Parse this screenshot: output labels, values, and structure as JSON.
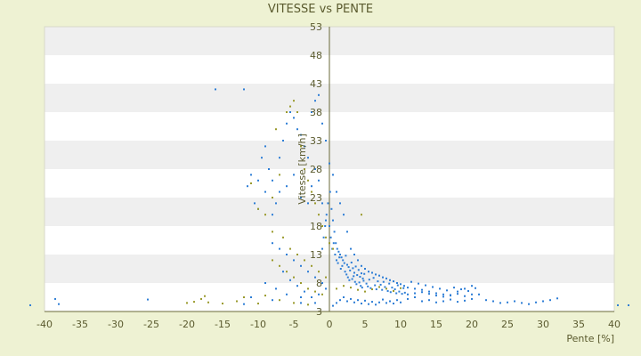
{
  "chart_data": {
    "type": "scatter",
    "title": "VITESSE vs PENTE",
    "xlabel": "Pente [%]",
    "ylabel": "Vitesse [km/h]",
    "xlim": [
      -40,
      40
    ],
    "ylim": [
      3,
      53
    ],
    "x_ticks": [
      -40,
      -35,
      -30,
      -25,
      -20,
      -15,
      -10,
      -5,
      0,
      5,
      10,
      15,
      20,
      25,
      30,
      35,
      40
    ],
    "y_ticks": [
      3,
      8,
      13,
      18,
      23,
      28,
      33,
      38,
      43,
      48,
      53
    ],
    "grid": "horizontal-alternating-bands",
    "legend": "none",
    "series": [
      {
        "color": "#2e7ed6",
        "points": [
          [
            -42,
            4.1
          ],
          [
            -38.5,
            5.2
          ],
          [
            -38,
            4.3
          ],
          [
            -25.5,
            5.1
          ],
          [
            -12,
            4.3
          ],
          [
            -11,
            5.5
          ],
          [
            -8,
            5
          ],
          [
            -4,
            5.5
          ],
          [
            -16,
            42
          ],
          [
            -12,
            42
          ],
          [
            -11.5,
            25
          ],
          [
            -11,
            27
          ],
          [
            -10,
            26
          ],
          [
            -9.5,
            30
          ],
          [
            -9,
            32
          ],
          [
            -8.5,
            28
          ],
          [
            -8,
            26
          ],
          [
            -7,
            30
          ],
          [
            -6.5,
            33
          ],
          [
            -6,
            36
          ],
          [
            -5.5,
            38
          ],
          [
            -5,
            37
          ],
          [
            -4.5,
            35
          ],
          [
            -4,
            34
          ],
          [
            -3.5,
            32
          ],
          [
            -3,
            30
          ],
          [
            -2.5,
            38
          ],
          [
            -2,
            40
          ],
          [
            -1.5,
            41
          ],
          [
            -1,
            36
          ],
          [
            -0.5,
            33
          ],
          [
            0,
            29
          ],
          [
            0.5,
            27
          ],
          [
            1,
            24
          ],
          [
            1.5,
            22
          ],
          [
            2,
            20
          ],
          [
            2.5,
            17
          ],
          [
            3,
            14
          ],
          [
            3.5,
            13
          ],
          [
            4,
            12
          ],
          [
            4.5,
            11
          ],
          [
            5,
            10.5
          ],
          [
            5.5,
            10
          ],
          [
            6,
            9.8
          ],
          [
            6.5,
            9.5
          ],
          [
            7,
            9.3
          ],
          [
            7.5,
            9
          ],
          [
            8,
            8.8
          ],
          [
            8.5,
            8.5
          ],
          [
            9,
            8.3
          ],
          [
            9.5,
            8
          ],
          [
            10,
            7.8
          ],
          [
            10.5,
            7.5
          ],
          [
            11,
            7.2
          ],
          [
            12,
            7
          ],
          [
            13,
            6.8
          ],
          [
            14,
            6.5
          ],
          [
            15,
            6.2
          ],
          [
            16,
            6
          ],
          [
            17,
            5.8
          ],
          [
            18,
            6.5
          ],
          [
            19,
            7
          ],
          [
            20,
            7.5
          ],
          [
            21,
            6
          ],
          [
            22,
            5
          ],
          [
            23,
            4.8
          ],
          [
            24,
            4.5
          ],
          [
            25,
            4.6
          ],
          [
            26,
            4.8
          ],
          [
            27,
            4.5
          ],
          [
            28,
            4.3
          ],
          [
            29,
            4.6
          ],
          [
            30,
            4.8
          ],
          [
            31,
            5
          ],
          [
            32,
            5.3
          ],
          [
            40.5,
            4.1
          ],
          [
            42,
            4.1
          ],
          [
            -10,
            21
          ],
          [
            -10.5,
            22
          ],
          [
            -9,
            24
          ],
          [
            -8,
            20
          ],
          [
            -7.5,
            22
          ],
          [
            -7,
            24
          ],
          [
            -6,
            25
          ],
          [
            -5,
            27
          ],
          [
            -4,
            23
          ],
          [
            -3,
            22
          ],
          [
            -2.5,
            25
          ],
          [
            -2,
            28
          ],
          [
            -1.5,
            26
          ],
          [
            -1,
            22
          ],
          [
            -0.5,
            19
          ],
          [
            0,
            18
          ],
          [
            0.2,
            16
          ],
          [
            0.4,
            14
          ],
          [
            0.6,
            15
          ],
          [
            0.8,
            13
          ],
          [
            1,
            12
          ],
          [
            1.2,
            11.5
          ],
          [
            1.4,
            12.5
          ],
          [
            1.6,
            10.5
          ],
          [
            1.8,
            11
          ],
          [
            2.2,
            10
          ],
          [
            2.4,
            9.5
          ],
          [
            2.6,
            9
          ],
          [
            2.8,
            8.5
          ],
          [
            3.2,
            8.7
          ],
          [
            3.4,
            9.2
          ],
          [
            3.6,
            8.2
          ],
          [
            3.8,
            7.8
          ],
          [
            4.2,
            8.1
          ],
          [
            4.4,
            7.5
          ],
          [
            4.6,
            7.2
          ],
          [
            4.8,
            8.4
          ],
          [
            5.2,
            7.9
          ],
          [
            5.4,
            7.4
          ],
          [
            5.6,
            8.6
          ],
          [
            5.8,
            7.1
          ],
          [
            6.2,
            8.9
          ],
          [
            6.4,
            7.6
          ],
          [
            6.6,
            6.9
          ],
          [
            6.8,
            8.3
          ],
          [
            7.2,
            7.7
          ],
          [
            7.4,
            6.8
          ],
          [
            7.6,
            8.2
          ],
          [
            7.8,
            7.3
          ],
          [
            8.2,
            6.6
          ],
          [
            8.4,
            7.9
          ],
          [
            8.6,
            6.4
          ],
          [
            8.8,
            7.2
          ],
          [
            9.2,
            6.9
          ],
          [
            9.4,
            6.2
          ],
          [
            9.6,
            7.6
          ],
          [
            9.8,
            6.5
          ],
          [
            10.2,
            6.1
          ],
          [
            10.4,
            7.1
          ],
          [
            10.6,
            6.3
          ],
          [
            -8,
            15
          ],
          [
            -7,
            14
          ],
          [
            -6,
            13
          ],
          [
            -5,
            12
          ],
          [
            -4,
            11
          ],
          [
            -3,
            10
          ],
          [
            -2,
            9
          ],
          [
            -1,
            8
          ],
          [
            -6.5,
            10
          ],
          [
            -5.5,
            8.5
          ],
          [
            -4.5,
            7.5
          ],
          [
            -3.5,
            6.5
          ],
          [
            -2.5,
            5.5
          ],
          [
            -1.5,
            6
          ],
          [
            -0.5,
            7
          ],
          [
            -9,
            8
          ],
          [
            -7.5,
            7
          ],
          [
            -6,
            6
          ],
          [
            -4,
            4.5
          ],
          [
            -2,
            4.5
          ],
          [
            0.5,
            4
          ],
          [
            1,
            4.5
          ],
          [
            1.5,
            5
          ],
          [
            2,
            5.5
          ],
          [
            2.5,
            4.8
          ],
          [
            3,
            5.2
          ],
          [
            3.5,
            4.6
          ],
          [
            4,
            5
          ],
          [
            4.5,
            4.4
          ],
          [
            5,
            4.9
          ],
          [
            5.5,
            4.3
          ],
          [
            6,
            4.7
          ],
          [
            6.5,
            4.2
          ],
          [
            7,
            4.6
          ],
          [
            7.5,
            5.1
          ],
          [
            8,
            4.5
          ],
          [
            8.5,
            4.8
          ],
          [
            9,
            4.4
          ],
          [
            9.5,
            5
          ],
          [
            10,
            4.6
          ],
          [
            11,
            5.2
          ],
          [
            12,
            5.5
          ],
          [
            13,
            4.8
          ],
          [
            14,
            5
          ],
          [
            15,
            4.6
          ],
          [
            16,
            4.8
          ],
          [
            17,
            5.1
          ],
          [
            18,
            4.7
          ],
          [
            19,
            4.9
          ],
          [
            20,
            5.2
          ],
          [
            -1,
            14
          ],
          [
            -0.8,
            16
          ],
          [
            -0.6,
            18
          ],
          [
            -0.4,
            20
          ],
          [
            -0.2,
            22
          ],
          [
            0.1,
            24
          ],
          [
            0.3,
            21
          ],
          [
            0.5,
            19
          ],
          [
            0.7,
            17
          ],
          [
            0.9,
            15
          ],
          [
            1.1,
            14
          ],
          [
            1.3,
            13.5
          ],
          [
            1.5,
            13
          ],
          [
            1.7,
            12.5
          ],
          [
            1.9,
            12
          ],
          [
            2.1,
            11.5
          ],
          [
            2.3,
            12.8
          ],
          [
            2.5,
            11.2
          ],
          [
            2.7,
            10.8
          ],
          [
            2.9,
            10.2
          ],
          [
            3.1,
            11.6
          ],
          [
            3.3,
            10.6
          ],
          [
            3.5,
            9.8
          ],
          [
            3.7,
            10.9
          ],
          [
            3.9,
            9.4
          ],
          [
            4.1,
            10.3
          ],
          [
            4.3,
            9.1
          ],
          [
            4.5,
            9.7
          ],
          [
            4.7,
            8.8
          ],
          [
            4.9,
            9.6
          ],
          [
            11.5,
            8.2
          ],
          [
            12.5,
            7.9
          ],
          [
            13.5,
            7.6
          ],
          [
            14.5,
            7.3
          ],
          [
            15.5,
            7
          ],
          [
            16.5,
            6.7
          ],
          [
            17.5,
            7.2
          ],
          [
            18.5,
            6.9
          ],
          [
            19.5,
            6.6
          ],
          [
            20.5,
            7.1
          ],
          [
            11,
            6
          ],
          [
            12,
            6.2
          ],
          [
            13,
            6.4
          ],
          [
            14,
            6.1
          ],
          [
            15,
            5.8
          ],
          [
            16,
            5.6
          ],
          [
            17,
            5.9
          ],
          [
            18,
            6.1
          ],
          [
            19,
            5.7
          ],
          [
            20,
            6
          ]
        ]
      },
      {
        "color": "#9a9a2c",
        "points": [
          [
            -20,
            4.5
          ],
          [
            -19,
            4.7
          ],
          [
            -18,
            5.2
          ],
          [
            -17.5,
            5.7
          ],
          [
            -17,
            4.6
          ],
          [
            -15,
            4.4
          ],
          [
            -13,
            4.8
          ],
          [
            -12,
            5.5
          ],
          [
            -10,
            4.4
          ],
          [
            -9,
            5.8
          ],
          [
            -11,
            25.5
          ],
          [
            -10,
            21
          ],
          [
            -9,
            20
          ],
          [
            -8,
            23
          ],
          [
            -7.5,
            35
          ],
          [
            -7,
            27
          ],
          [
            -6,
            38
          ],
          [
            -5.5,
            39
          ],
          [
            -5,
            40
          ],
          [
            -4.5,
            38
          ],
          [
            -4,
            32
          ],
          [
            -3.5,
            28
          ],
          [
            -3,
            26
          ],
          [
            -2.5,
            24
          ],
          [
            -2,
            22
          ],
          [
            -1.5,
            20
          ],
          [
            -1,
            18
          ],
          [
            -0.5,
            16
          ],
          [
            0,
            15
          ],
          [
            0.5,
            14
          ],
          [
            -8,
            12
          ],
          [
            -7,
            11
          ],
          [
            -6,
            10
          ],
          [
            -5,
            9
          ],
          [
            -4,
            8
          ],
          [
            -3,
            7
          ],
          [
            -2,
            6.5
          ],
          [
            -1,
            6
          ],
          [
            1,
            7
          ],
          [
            2,
            7.5
          ],
          [
            3,
            7.2
          ],
          [
            4,
            6.8
          ],
          [
            5,
            6.5
          ],
          [
            6,
            6.9
          ],
          [
            7,
            7.3
          ],
          [
            8,
            7
          ],
          [
            9,
            6.6
          ],
          [
            10,
            7.1
          ],
          [
            4.5,
            20
          ],
          [
            -8,
            17
          ],
          [
            -6.5,
            16
          ],
          [
            -5.5,
            14
          ],
          [
            -4.5,
            13
          ],
          [
            -3.5,
            12
          ],
          [
            -2.5,
            11
          ],
          [
            -1.5,
            10
          ],
          [
            -0.5,
            9
          ],
          [
            -7,
            5
          ],
          [
            -5,
            4.5
          ],
          [
            -3,
            4.2
          ]
        ]
      }
    ]
  }
}
